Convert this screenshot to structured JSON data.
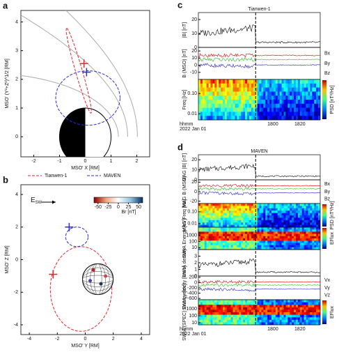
{
  "a": {
    "letter": "a",
    "xlabel": "MSO' X [RM]",
    "ylabel": "MSO' (Y²+Z²)^1/2 [RM]",
    "xlim": [
      -2.5,
      2.5
    ],
    "ylim": [
      -0.7,
      4.4
    ],
    "xticks": [
      -2,
      -1,
      0,
      1,
      2
    ],
    "yticks": [
      0,
      1,
      2,
      3,
      4
    ],
    "legend": [
      "Tianwen-1",
      "MAVEN"
    ],
    "colors": [
      "#e8232a",
      "#2b2bd6"
    ]
  },
  "b": {
    "letter": "b",
    "xlabel": "MSO' Y [RM]",
    "ylabel": "MSO' Z [RM]",
    "xlim": [
      -4.6,
      4.6
    ],
    "ylim": [
      -4.6,
      4.6
    ],
    "xticks": [
      -4,
      -2,
      0,
      2,
      4
    ],
    "yticks": [
      -4,
      -2,
      0,
      2,
      4
    ],
    "esw": [
      "E",
      "SW"
    ],
    "cbar_label": "Br [nT]",
    "cbar_lim": [
      -60,
      60
    ],
    "cbar_ticks": [
      -50,
      -25,
      0,
      25,
      50
    ]
  },
  "c": {
    "letter": "c",
    "title": "Tianwen-1",
    "time_lim": [
      1745,
      1835
    ],
    "time_ticks": [
      1800,
      1820
    ],
    "time_unit": "hhmm",
    "date": "2022 Jan 01",
    "rows": [
      {
        "label": "|B| [nT]",
        "ylim": [
          0,
          25
        ],
        "yticks": [
          0,
          10,
          20
        ],
        "kind": "line"
      },
      {
        "label": "B (MSO) [nT]",
        "ylim": [
          -20,
          25
        ],
        "yticks": [
          -10,
          0,
          10,
          20
        ],
        "kind": "lines",
        "comps": [
          "Bx",
          "By",
          "Bz"
        ],
        "colors": [
          "#e00000",
          "#22bb22",
          "#2222cc"
        ]
      },
      {
        "label": "Freq [Hz]",
        "ylim": [
          0.005,
          0.5
        ],
        "log": true,
        "yticks": [
          {
            "value": 0.1,
            "label": "0.10"
          },
          {
            "value": 0.01,
            "label": "0.01"
          }
        ],
        "kind": "spec",
        "bar": "PSD [nT²/Hz]"
      }
    ]
  },
  "d": {
    "letter": "d",
    "title": "MAVEN",
    "time_lim": [
      1745,
      1835
    ],
    "time_ticks": [
      1800,
      1820
    ],
    "time_unit": "hhmm",
    "date": "2022 Jan 01",
    "rows": [
      {
        "label": "MAG |B| [nT]",
        "ylim": [
          0,
          25
        ],
        "yticks": [
          0,
          10,
          20
        ],
        "kind": "line"
      },
      {
        "label": "MAG B (MSO)",
        "ylim": [
          -25,
          25
        ],
        "yticks": [
          -20,
          0,
          20
        ],
        "kind": "lines",
        "comps": [
          "Bx",
          "By",
          "Bz"
        ],
        "colors": [
          "#e00000",
          "#22bb22",
          "#2222cc"
        ]
      },
      {
        "label": "MAG Freq [Hz]",
        "ylim": [
          0.005,
          0.5
        ],
        "log": true,
        "yticks": [
          {
            "value": 0.1,
            "label": "0.10"
          },
          {
            "value": 0.01,
            "label": "0.01"
          }
        ],
        "kind": "spec",
        "bar": "PSD [nT²/Hz]"
      },
      {
        "label": "SWIA Energy [eV]",
        "ylim": [
          5,
          20000
        ],
        "log": true,
        "yticks": [
          10,
          100,
          1000
        ],
        "kind": "spec",
        "bar": "EFlux"
      },
      {
        "label": "SWIA density",
        "ylim": [
          0,
          4
        ],
        "yticks": [
          0,
          1,
          2,
          3
        ],
        "kind": "line"
      },
      {
        "label": "SWIA velocity [km/s]",
        "ylim": [
          -650,
          250
        ],
        "yticks": [
          -600,
          -400,
          -200,
          0,
          200
        ],
        "kind": "lines",
        "comps": [
          "Vx",
          "Vy",
          "Vz"
        ],
        "colors": [
          "#e00000",
          "#22bb22",
          "#2222cc"
        ]
      },
      {
        "label": "SWIA (SPEC) Energy [eV]",
        "ylim": [
          5,
          20000
        ],
        "log": true,
        "yticks": [
          10,
          100,
          1000
        ],
        "kind": "spec",
        "bar": "EFlux"
      }
    ]
  }
}
